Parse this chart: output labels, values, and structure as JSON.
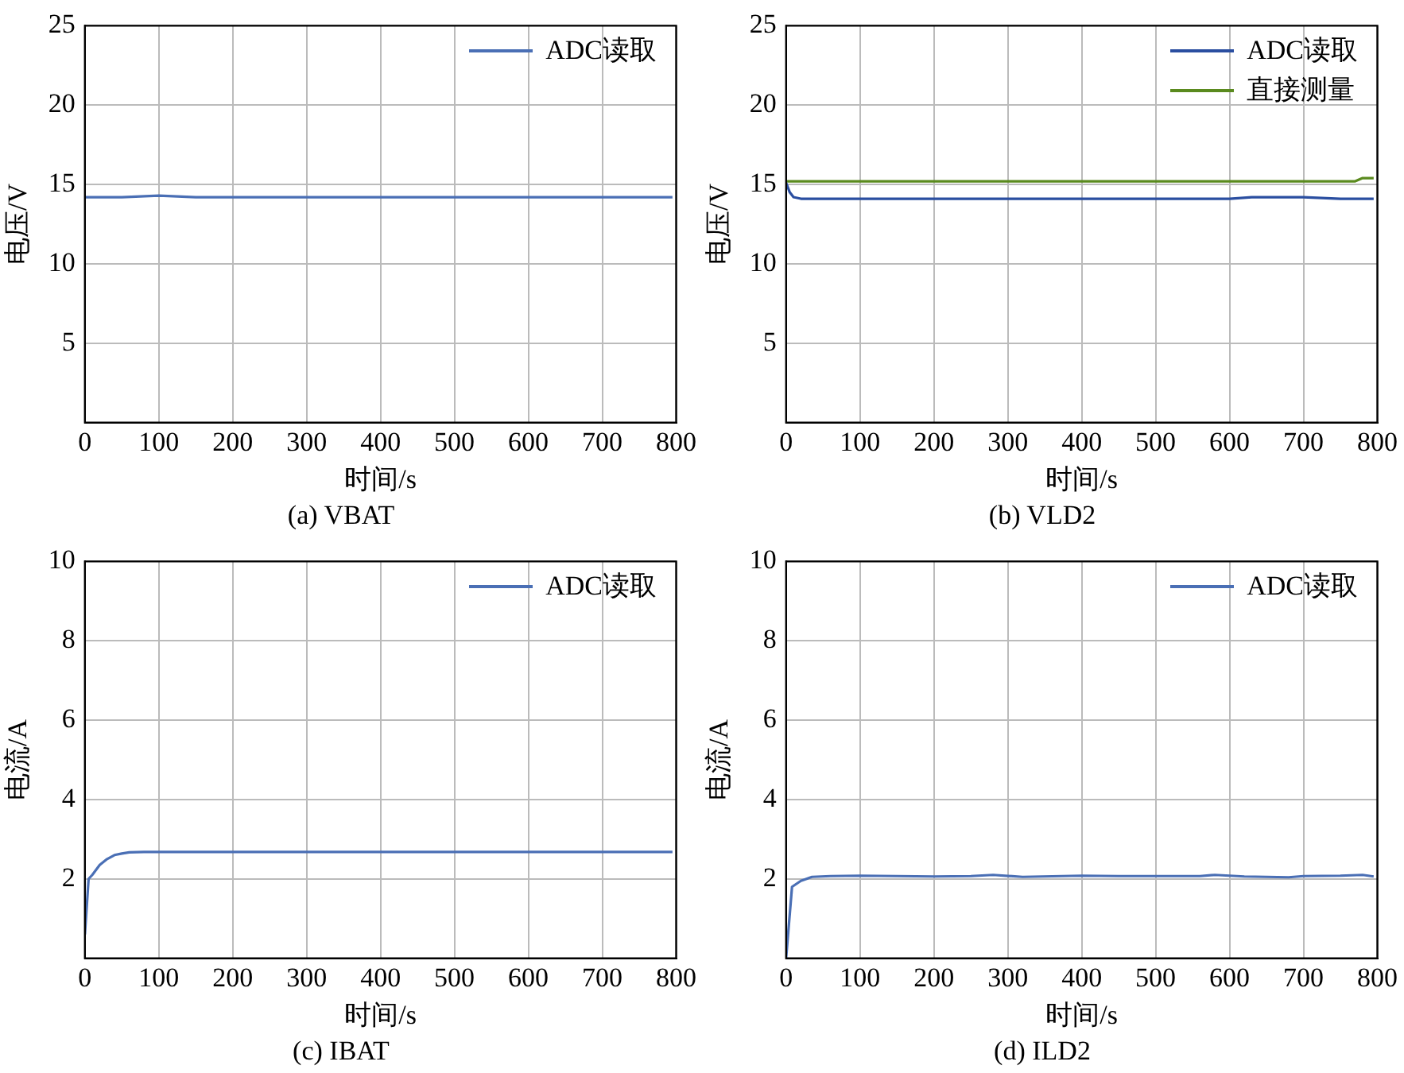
{
  "chart_data": [
    {
      "type": "line",
      "title": "(a) VBAT",
      "xlabel": "时间/s",
      "ylabel": "电压/V",
      "xlim": [
        0,
        800
      ],
      "xticks": [
        0,
        100,
        200,
        300,
        400,
        500,
        600,
        700,
        800
      ],
      "ylim": [
        0,
        25
      ],
      "yticks": [
        5,
        10,
        15,
        20,
        25
      ],
      "grid": true,
      "legend": "top right",
      "marker": "none",
      "line_style": "solid",
      "series": [
        {
          "name": "ADC读取",
          "color": "#4a6fb5",
          "x": [
            0,
            50,
            100,
            150,
            200,
            250,
            300,
            350,
            400,
            450,
            500,
            550,
            600,
            650,
            700,
            750,
            795
          ],
          "values": [
            14.2,
            14.2,
            14.3,
            14.2,
            14.2,
            14.2,
            14.2,
            14.2,
            14.2,
            14.2,
            14.2,
            14.2,
            14.2,
            14.2,
            14.2,
            14.2,
            14.2
          ]
        }
      ]
    },
    {
      "type": "line",
      "title": "(b) VLD2",
      "xlabel": "时间/s",
      "ylabel": "电压/V",
      "xlim": [
        0,
        800
      ],
      "xticks": [
        0,
        100,
        200,
        300,
        400,
        500,
        600,
        700,
        800
      ],
      "ylim": [
        0,
        25
      ],
      "yticks": [
        5,
        10,
        15,
        20,
        25
      ],
      "grid": true,
      "legend": "top right",
      "marker": "none",
      "line_style": "solid",
      "series": [
        {
          "name": "ADC读取",
          "color": "#2a4ea0",
          "x": [
            0,
            5,
            10,
            20,
            40,
            100,
            200,
            300,
            400,
            500,
            600,
            630,
            700,
            750,
            795
          ],
          "values": [
            15.1,
            14.5,
            14.2,
            14.1,
            14.1,
            14.1,
            14.1,
            14.1,
            14.1,
            14.1,
            14.1,
            14.2,
            14.2,
            14.1,
            14.1
          ]
        },
        {
          "name": "直接测量",
          "color": "#5a8a1e",
          "x": [
            0,
            100,
            200,
            300,
            400,
            500,
            600,
            700,
            770,
            780,
            795
          ],
          "values": [
            15.2,
            15.2,
            15.2,
            15.2,
            15.2,
            15.2,
            15.2,
            15.2,
            15.2,
            15.4,
            15.4
          ]
        }
      ]
    },
    {
      "type": "line",
      "title": "(c) IBAT",
      "xlabel": "时间/s",
      "ylabel": "电流/A",
      "xlim": [
        0,
        800
      ],
      "xticks": [
        0,
        100,
        200,
        300,
        400,
        500,
        600,
        700,
        800
      ],
      "ylim": [
        0,
        10
      ],
      "yticks": [
        2,
        4,
        6,
        8,
        10
      ],
      "grid": true,
      "legend": "top right",
      "marker": "none",
      "line_style": "solid",
      "series": [
        {
          "name": "ADC读取",
          "color": "#4a6fb5",
          "x": [
            0,
            5,
            10,
            20,
            30,
            40,
            50,
            60,
            80,
            100,
            200,
            300,
            400,
            500,
            600,
            700,
            795
          ],
          "values": [
            0.6,
            2.0,
            2.1,
            2.35,
            2.5,
            2.6,
            2.64,
            2.67,
            2.68,
            2.68,
            2.68,
            2.68,
            2.68,
            2.68,
            2.68,
            2.68,
            2.68
          ]
        }
      ]
    },
    {
      "type": "line",
      "title": "(d) ILD2",
      "xlabel": "时间/s",
      "ylabel": "电流/A",
      "xlim": [
        0,
        800
      ],
      "xticks": [
        0,
        100,
        200,
        300,
        400,
        500,
        600,
        700,
        800
      ],
      "ylim": [
        0,
        10
      ],
      "yticks": [
        2,
        4,
        6,
        8,
        10
      ],
      "grid": true,
      "legend": "top right",
      "marker": "none",
      "line_style": "solid",
      "series": [
        {
          "name": "ADC读取",
          "color": "#4a6fb5",
          "x": [
            0,
            8,
            20,
            35,
            60,
            100,
            150,
            200,
            250,
            280,
            320,
            400,
            450,
            500,
            560,
            580,
            620,
            680,
            700,
            750,
            780,
            795
          ],
          "values": [
            0,
            1.8,
            1.95,
            2.05,
            2.07,
            2.08,
            2.07,
            2.06,
            2.07,
            2.1,
            2.05,
            2.08,
            2.07,
            2.07,
            2.07,
            2.1,
            2.06,
            2.04,
            2.07,
            2.08,
            2.1,
            2.06
          ]
        }
      ]
    }
  ]
}
